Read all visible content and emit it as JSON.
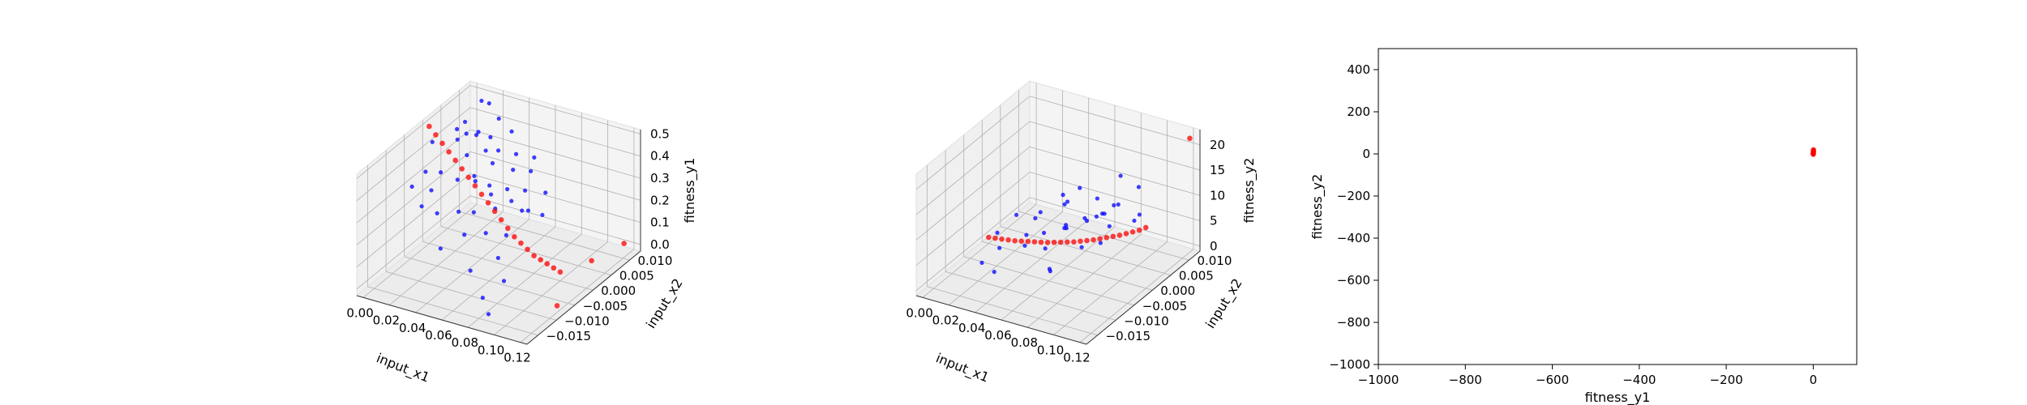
{
  "chart_data": [
    {
      "type": "scatter",
      "projection": "3d",
      "title": "",
      "xlabel": "input_x1",
      "ylabel": "input_x2",
      "zlabel": "fitness_y1",
      "xticks": [
        "0.00",
        "0.02",
        "0.04",
        "0.06",
        "0.08",
        "0.10",
        "0.12"
      ],
      "yticks": [
        "−0.015",
        "−0.010",
        "−0.005",
        "0.000",
        "0.005",
        "0.010"
      ],
      "zticks": [
        "0.0",
        "0.1",
        "0.2",
        "0.3",
        "0.4",
        "0.5"
      ],
      "xlim": [
        -0.005,
        0.125
      ],
      "ylim": [
        -0.018,
        0.013
      ],
      "zlim": [
        -0.03,
        0.52
      ],
      "grid": true,
      "colors": {
        "series_a": "#0000ff",
        "series_b": "#ff0000"
      },
      "series": [
        {
          "points": [
            [
              0.005,
              0.008,
              0.42
            ],
            [
              0.008,
              -0.002,
              0.47
            ],
            [
              0.01,
              0.004,
              0.45
            ],
            [
              0.012,
              0.01,
              0.5
            ],
            [
              0.014,
              -0.006,
              0.4
            ],
            [
              0.016,
              0.002,
              0.44
            ],
            [
              0.018,
              0.007,
              0.41
            ],
            [
              0.02,
              -0.004,
              0.38
            ],
            [
              0.022,
              0.005,
              0.43
            ],
            [
              0.024,
              -0.008,
              0.36
            ],
            [
              0.026,
              0.001,
              0.4
            ],
            [
              0.028,
              0.009,
              0.46
            ],
            [
              0.03,
              -0.003,
              0.35
            ],
            [
              0.032,
              0.004,
              0.39
            ],
            [
              0.034,
              -0.01,
              0.3
            ],
            [
              0.036,
              0.006,
              0.37
            ],
            [
              0.038,
              -0.001,
              0.33
            ],
            [
              0.04,
              0.003,
              0.36
            ],
            [
              0.042,
              -0.007,
              0.28
            ],
            [
              0.044,
              0.008,
              0.34
            ],
            [
              0.046,
              0.0,
              0.31
            ],
            [
              0.048,
              -0.005,
              0.26
            ],
            [
              0.05,
              0.005,
              0.32
            ],
            [
              0.052,
              -0.009,
              0.22
            ],
            [
              0.054,
              0.002,
              0.28
            ],
            [
              0.056,
              -0.002,
              0.25
            ],
            [
              0.058,
              0.007,
              0.3
            ],
            [
              0.06,
              -0.006,
              0.2
            ],
            [
              0.062,
              0.004,
              0.26
            ],
            [
              0.065,
              -0.012,
              0.12
            ],
            [
              0.068,
              0.001,
              0.22
            ],
            [
              0.07,
              -0.004,
              0.18
            ],
            [
              0.072,
              0.006,
              0.24
            ],
            [
              0.075,
              -0.008,
              0.14
            ],
            [
              0.078,
              0.003,
              0.19
            ],
            [
              0.08,
              -0.014,
              0.05
            ],
            [
              0.085,
              -0.01,
              0.08
            ],
            [
              0.09,
              -0.016,
              0.02
            ],
            [
              0.015,
              0.011,
              0.48
            ],
            [
              0.025,
              -0.011,
              0.33
            ],
            [
              0.035,
              0.01,
              0.4
            ],
            [
              0.045,
              -0.013,
              0.2
            ],
            [
              0.055,
              0.009,
              0.33
            ],
            [
              0.012,
              -0.009,
              0.37
            ],
            [
              0.03,
              0.006,
              0.42
            ],
            [
              0.04,
              -0.002,
              0.37
            ],
            [
              0.05,
              -0.001,
              0.29
            ],
            [
              0.02,
              0.003,
              0.46
            ],
            [
              0.06,
              0.001,
              0.25
            ],
            [
              0.07,
              0.002,
              0.21
            ]
          ]
        },
        {
          "points": [
            [
              0.0,
              0.0,
              0.5
            ],
            [
              0.005,
              0.0,
              0.47
            ],
            [
              0.01,
              0.0,
              0.44
            ],
            [
              0.015,
              0.0,
              0.41
            ],
            [
              0.02,
              0.0,
              0.38
            ],
            [
              0.025,
              0.0,
              0.35
            ],
            [
              0.03,
              0.0,
              0.32
            ],
            [
              0.035,
              0.0,
              0.29
            ],
            [
              0.04,
              0.0,
              0.26
            ],
            [
              0.045,
              0.0,
              0.23
            ],
            [
              0.05,
              0.0,
              0.2
            ],
            [
              0.055,
              0.0,
              0.17
            ],
            [
              0.06,
              0.0,
              0.14
            ],
            [
              0.065,
              0.0,
              0.11
            ],
            [
              0.07,
              0.0,
              0.09
            ],
            [
              0.075,
              0.0,
              0.07
            ],
            [
              0.08,
              0.0,
              0.05
            ],
            [
              0.085,
              0.0,
              0.04
            ],
            [
              0.09,
              0.0,
              0.03
            ],
            [
              0.095,
              0.0,
              0.02
            ],
            [
              0.1,
              0.0,
              0.01
            ],
            [
              0.11,
              0.005,
              0.01
            ],
            [
              0.12,
              -0.008,
              0.0
            ],
            [
              0.118,
              0.011,
              0.02
            ]
          ]
        }
      ]
    },
    {
      "type": "scatter",
      "projection": "3d",
      "title": "",
      "xlabel": "input_x1",
      "ylabel": "input_x2",
      "zlabel": "fitness_y2",
      "xticks": [
        "0.00",
        "0.02",
        "0.04",
        "0.06",
        "0.08",
        "0.10",
        "0.12"
      ],
      "yticks": [
        "−0.015",
        "−0.010",
        "−0.005",
        "0.000",
        "0.005",
        "0.010"
      ],
      "zticks": [
        "0",
        "5",
        "10",
        "15",
        "20"
      ],
      "xlim": [
        -0.005,
        0.125
      ],
      "ylim": [
        -0.018,
        0.013
      ],
      "zlim": [
        -1.0,
        23.0
      ],
      "grid": true,
      "colors": {
        "series_a": "#0000ff",
        "series_b": "#ff0000"
      },
      "series": [
        {
          "points": [
            [
              0.01,
              0.004,
              3.0
            ],
            [
              0.015,
              -0.003,
              4.0
            ],
            [
              0.02,
              0.007,
              2.5
            ],
            [
              0.025,
              -0.006,
              3.5
            ],
            [
              0.03,
              0.002,
              5.0
            ],
            [
              0.035,
              0.009,
              4.5
            ],
            [
              0.04,
              -0.004,
              6.0
            ],
            [
              0.045,
              0.005,
              3.0
            ],
            [
              0.05,
              -0.008,
              7.0
            ],
            [
              0.055,
              0.001,
              5.5
            ],
            [
              0.06,
              0.008,
              4.0
            ],
            [
              0.065,
              -0.002,
              8.0
            ],
            [
              0.07,
              0.006,
              6.5
            ],
            [
              0.075,
              -0.01,
              5.0
            ],
            [
              0.08,
              0.003,
              9.0
            ],
            [
              0.085,
              -0.005,
              7.5
            ],
            [
              0.09,
              0.009,
              6.0
            ],
            [
              0.095,
              -0.001,
              10.0
            ],
            [
              0.1,
              0.004,
              8.5
            ],
            [
              0.105,
              -0.007,
              11.0
            ],
            [
              0.02,
              -0.009,
              2.0
            ],
            [
              0.03,
              0.01,
              3.0
            ],
            [
              0.04,
              0.006,
              8.0
            ],
            [
              0.05,
              0.007,
              9.5
            ],
            [
              0.06,
              -0.006,
              6.0
            ],
            [
              0.07,
              0.011,
              11.0
            ],
            [
              0.08,
              -0.012,
              7.0
            ],
            [
              0.09,
              0.002,
              12.0
            ],
            [
              0.045,
              -0.001,
              5.0
            ],
            [
              0.065,
              0.003,
              7.0
            ],
            [
              0.075,
              0.0,
              9.0
            ],
            [
              0.085,
              0.005,
              10.0
            ],
            [
              0.035,
              -0.011,
              2.5
            ],
            [
              0.055,
              0.01,
              6.0
            ],
            [
              0.095,
              0.007,
              13.0
            ]
          ]
        },
        {
          "points": [
            [
              0.0,
              0.0,
              0.2
            ],
            [
              0.005,
              0.0,
              0.4
            ],
            [
              0.01,
              0.0,
              0.6
            ],
            [
              0.015,
              0.0,
              0.8
            ],
            [
              0.02,
              0.0,
              1.0
            ],
            [
              0.025,
              0.0,
              1.3
            ],
            [
              0.03,
              0.0,
              1.6
            ],
            [
              0.035,
              0.0,
              1.9
            ],
            [
              0.04,
              0.0,
              2.2
            ],
            [
              0.045,
              0.0,
              2.5
            ],
            [
              0.05,
              0.0,
              2.9
            ],
            [
              0.055,
              0.0,
              3.3
            ],
            [
              0.06,
              0.0,
              3.7
            ],
            [
              0.065,
              0.0,
              4.1
            ],
            [
              0.07,
              0.0,
              4.6
            ],
            [
              0.075,
              0.0,
              5.1
            ],
            [
              0.08,
              0.0,
              5.6
            ],
            [
              0.085,
              0.0,
              6.2
            ],
            [
              0.09,
              0.0,
              6.8
            ],
            [
              0.095,
              0.0,
              7.4
            ],
            [
              0.1,
              0.0,
              8.0
            ],
            [
              0.105,
              0.0,
              8.7
            ],
            [
              0.11,
              0.0,
              9.4
            ],
            [
              0.115,
              0.0,
              10.1
            ],
            [
              0.12,
              0.0,
              11.0
            ],
            [
              0.12,
              0.012,
              21.5
            ]
          ]
        }
      ]
    },
    {
      "type": "scatter",
      "title": "",
      "xlabel": "fitness_y1",
      "ylabel": "fitness_y2",
      "xticks": [
        "−1000",
        "−800",
        "−600",
        "−400",
        "−200",
        "0"
      ],
      "yticks": [
        "−1000",
        "−800",
        "−600",
        "−400",
        "−200",
        "0",
        "200",
        "400"
      ],
      "xlim": [
        -1000,
        100
      ],
      "ylim": [
        -1000,
        500
      ],
      "grid": false,
      "colors": {
        "series_b": "#ff0000"
      },
      "series": [
        {
          "points": [
            [
              0.05,
              1
            ],
            [
              0.1,
              3
            ],
            [
              0.2,
              5
            ],
            [
              0.3,
              8
            ],
            [
              0.4,
              12
            ],
            [
              0.45,
              15
            ],
            [
              0.5,
              20
            ],
            [
              0.0,
              0
            ],
            [
              0.15,
              -2
            ],
            [
              0.25,
              10
            ]
          ]
        }
      ]
    }
  ]
}
